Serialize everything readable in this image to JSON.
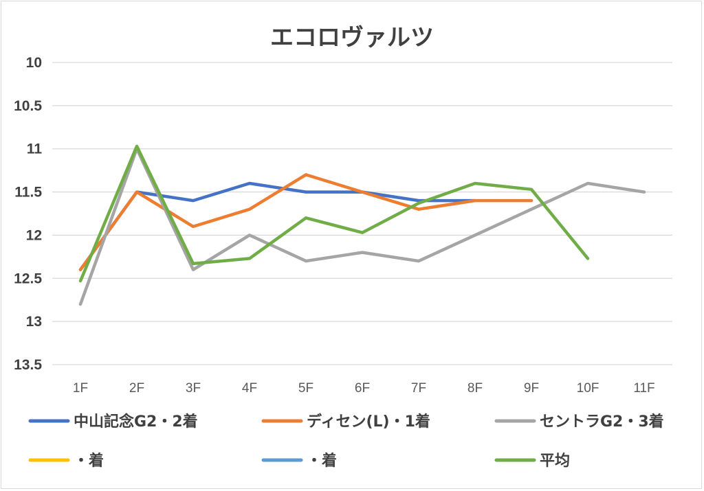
{
  "chart_data": {
    "type": "line",
    "title": "エコロヴァルツ",
    "xlabel": "",
    "ylabel": "",
    "categories": [
      "1F",
      "2F",
      "3F",
      "4F",
      "5F",
      "6F",
      "7F",
      "8F",
      "9F",
      "10F",
      "11F"
    ],
    "ylim": [
      10,
      13.5
    ],
    "y_reversed": true,
    "yticks": [
      "10",
      "10.5",
      "11",
      "11.5",
      "12",
      "12.5",
      "13",
      "13.5"
    ],
    "grid": true,
    "legend_position": "bottom",
    "series": [
      {
        "name": "中山記念G2・2着",
        "color": "#4472c4",
        "values": [
          12.4,
          11.5,
          11.6,
          11.4,
          11.5,
          11.5,
          11.6,
          11.6,
          null,
          null,
          null
        ]
      },
      {
        "name": "ディセン(L)・1着",
        "color": "#ed7d31",
        "values": [
          12.4,
          11.5,
          11.9,
          11.7,
          11.3,
          11.5,
          11.7,
          11.6,
          11.6,
          null,
          null
        ]
      },
      {
        "name": "セントラG2・3着",
        "color": "#a5a5a5",
        "values": [
          12.8,
          11.0,
          12.4,
          12.0,
          12.3,
          12.2,
          12.3,
          12.0,
          11.7,
          11.4,
          11.5
        ]
      },
      {
        "name": "・着",
        "color": "#ffc000",
        "values": [
          null,
          null,
          null,
          null,
          null,
          null,
          null,
          null,
          null,
          null,
          null
        ]
      },
      {
        "name": "・着",
        "color": "#5b9bd5",
        "values": [
          null,
          null,
          null,
          null,
          null,
          null,
          null,
          null,
          null,
          null,
          null
        ]
      },
      {
        "name": "平均",
        "color": "#70ad47",
        "values": [
          12.53,
          10.97,
          12.33,
          12.27,
          11.8,
          11.97,
          11.63,
          11.4,
          11.47,
          12.27,
          null
        ]
      }
    ]
  }
}
